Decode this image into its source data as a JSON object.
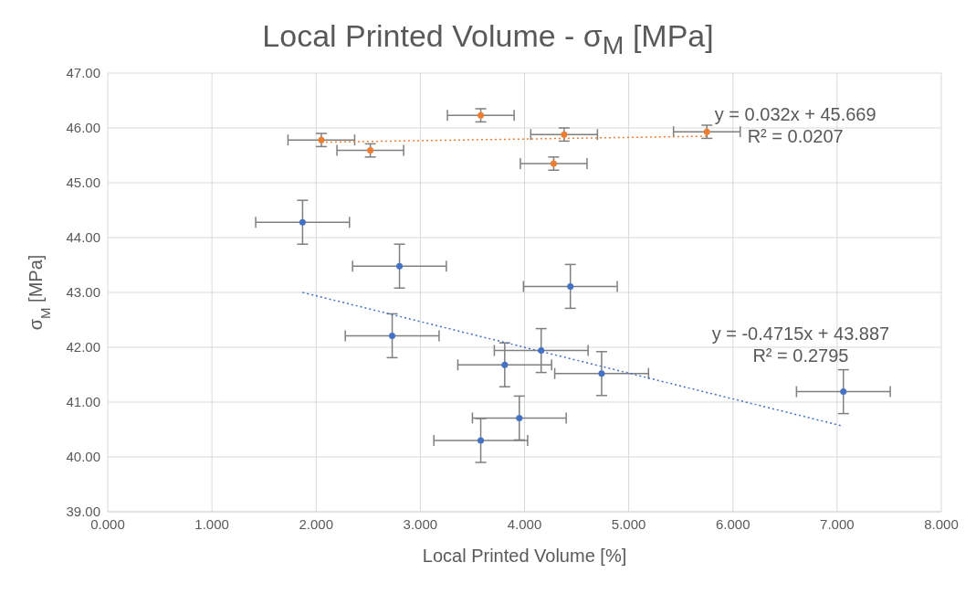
{
  "chart_data": {
    "type": "scatter",
    "title": "Local Printed Volume - σ$_{M}$ [MPa]",
    "xlabel": "Local Printed Volume [%]",
    "ylabel": "σ$_{M}$ [MPa]",
    "xlim": [
      0,
      8
    ],
    "xticks": [
      {
        "value": 0,
        "label": "0.000"
      },
      {
        "value": 1,
        "label": "1.000"
      },
      {
        "value": 2,
        "label": "2.000"
      },
      {
        "value": 3,
        "label": "3.000"
      },
      {
        "value": 4,
        "label": "4.000"
      },
      {
        "value": 5,
        "label": "5.000"
      },
      {
        "value": 6,
        "label": "6.000"
      },
      {
        "value": 7,
        "label": "7.000"
      },
      {
        "value": 8,
        "label": "8.000"
      }
    ],
    "ylim": [
      39,
      47
    ],
    "yticks": [
      {
        "value": 39,
        "label": "39.00"
      },
      {
        "value": 40,
        "label": "40.00"
      },
      {
        "value": 41,
        "label": "41.00"
      },
      {
        "value": 42,
        "label": "42.00"
      },
      {
        "value": 43,
        "label": "43.00"
      },
      {
        "value": 44,
        "label": "44.00"
      },
      {
        "value": 45,
        "label": "45.00"
      },
      {
        "value": 46,
        "label": "46.00"
      },
      {
        "value": 47,
        "label": "47.00"
      }
    ],
    "grid": true,
    "marker": "circle",
    "series": [
      {
        "color": "#ed7d31",
        "x": [
          2.05,
          2.52,
          3.58,
          4.38,
          4.28,
          5.75
        ],
        "values": [
          45.78,
          45.59,
          46.23,
          45.88,
          45.35,
          45.93
        ],
        "errors": [
          0.12,
          0.12,
          0.12,
          0.12,
          0.12,
          0.12
        ],
        "xerrors": [
          0.32,
          0.32,
          0.32,
          0.32,
          0.32,
          0.32
        ]
      },
      {
        "color": "#4472c4",
        "x": [
          1.87,
          2.8,
          4.44,
          2.73,
          4.16,
          3.81,
          4.74,
          7.06,
          3.95,
          3.58
        ],
        "values": [
          44.28,
          43.48,
          43.11,
          42.21,
          41.94,
          41.68,
          41.52,
          41.19,
          40.71,
          40.3
        ],
        "errors": [
          0.4,
          0.4,
          0.4,
          0.4,
          0.4,
          0.4,
          0.4,
          0.4,
          0.4,
          0.4
        ],
        "xerrors": [
          0.45,
          0.45,
          0.45,
          0.45,
          0.45,
          0.45,
          0.45,
          0.45,
          0.45,
          0.45
        ]
      },
      {
        "type": "line",
        "color": "#ed7d31",
        "line_style": "dotted",
        "marker": "none",
        "x": [
          2.05,
          5.75
        ],
        "values": [
          45.74,
          45.85
        ]
      },
      {
        "type": "line",
        "color": "#4472c4",
        "line_style": "dotted",
        "marker": "none",
        "x": [
          1.87,
          7.06
        ],
        "values": [
          43.0,
          40.56
        ]
      }
    ],
    "annotations": [
      "y = 0.032x + 45.669",
      "R² = 0.0207",
      "y = -0.4715x + 43.887",
      "R² = 0.2795"
    ]
  }
}
